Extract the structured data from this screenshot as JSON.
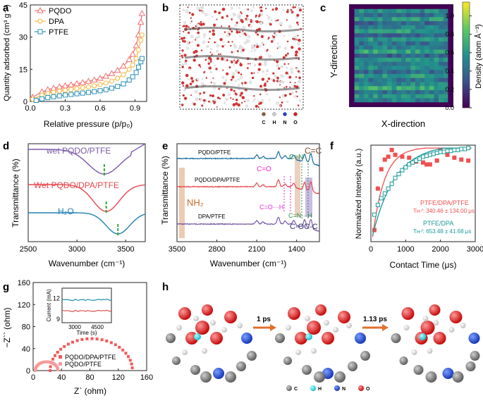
{
  "panels": {
    "a": "a",
    "b": "b",
    "c": "c",
    "d": "d",
    "e": "e",
    "f": "f",
    "g": "g",
    "h": "h"
  },
  "chart_data": [
    {
      "panel": "a",
      "type": "line",
      "xlabel": "Relative pressure (p/p₀)",
      "ylabel": "Quantity adsorbed (cm³ g⁻¹)",
      "xlim": [
        0.0,
        1.0
      ],
      "ylim": [
        0,
        45
      ],
      "xticks": [
        "0.0",
        "0.3",
        "0.6",
        "0.9"
      ],
      "yticks": [
        "0",
        "15",
        "30",
        "45"
      ],
      "legend_position": "top-left",
      "series": [
        {
          "name": "PQDO",
          "color": "#f07070",
          "marker": "triangle",
          "x": [
            0.02,
            0.1,
            0.15,
            0.2,
            0.25,
            0.3,
            0.35,
            0.4,
            0.45,
            0.5,
            0.55,
            0.6,
            0.65,
            0.7,
            0.75,
            0.8,
            0.85,
            0.88,
            0.91,
            0.93,
            0.95,
            0.96
          ],
          "y": [
            2.0,
            4.5,
            5.5,
            6.2,
            6.8,
            7.3,
            7.8,
            8.3,
            8.8,
            9.4,
            10.0,
            10.8,
            11.8,
            13.0,
            14.5,
            16.5,
            19.5,
            22.0,
            26.0,
            31.0,
            37.0,
            41.0
          ]
        },
        {
          "name": "DPA",
          "color": "#f3b63a",
          "marker": "circle",
          "x": [
            0.02,
            0.1,
            0.15,
            0.2,
            0.25,
            0.3,
            0.35,
            0.4,
            0.45,
            0.5,
            0.55,
            0.6,
            0.65,
            0.7,
            0.75,
            0.8,
            0.85,
            0.88,
            0.91,
            0.93,
            0.95,
            0.96
          ],
          "y": [
            1.0,
            3.0,
            3.8,
            4.3,
            4.8,
            5.2,
            5.6,
            6.0,
            6.4,
            6.8,
            7.3,
            7.9,
            8.6,
            9.5,
            10.8,
            12.5,
            15.0,
            17.0,
            20.0,
            24.0,
            28.5,
            31.0
          ]
        },
        {
          "name": "PTFE",
          "color": "#2a8fb5",
          "marker": "square",
          "x": [
            0.05,
            0.1,
            0.15,
            0.2,
            0.25,
            0.3,
            0.35,
            0.4,
            0.45,
            0.5,
            0.55,
            0.6,
            0.65,
            0.7,
            0.75,
            0.8,
            0.85,
            0.88,
            0.91,
            0.93,
            0.95,
            0.96
          ],
          "y": [
            0.5,
            1.2,
            1.8,
            2.2,
            2.6,
            3.0,
            3.3,
            3.6,
            3.9,
            4.2,
            4.6,
            5.0,
            5.5,
            6.2,
            7.0,
            8.2,
            10.0,
            11.5,
            13.5,
            16.0,
            18.5,
            20.0
          ]
        }
      ]
    },
    {
      "panel": "c",
      "type": "heatmap",
      "xlabel": "X-direction",
      "ylabel": "Y-direction",
      "colorbar_label": "Density (atom Å⁻³)",
      "colorbar_ticks": [
        "0.0",
        "0.2",
        "0.4",
        "0.6",
        "0.8",
        "1.0"
      ],
      "colorbar_range": [
        0.0,
        1.15
      ],
      "row_values": [
        0.0,
        0.55,
        0.42,
        0.6,
        0.38,
        0.5,
        0.62,
        0.4,
        0.58,
        0.44,
        0.52,
        0.68,
        0.36,
        0.6,
        0.48,
        0.56,
        0.4,
        0.62,
        0.46,
        0.54,
        0.7,
        0.42,
        0.58,
        0.5,
        0.0
      ]
    },
    {
      "panel": "d",
      "type": "line",
      "xlabel": "Wavenumber (cm⁻¹)",
      "ylabel": "Transmittance (%)",
      "xlim": [
        2500,
        3700
      ],
      "xticks": [
        "2500",
        "3000",
        "3500"
      ],
      "series": [
        {
          "name": "wet PQDO/PTFE",
          "color": "#7a5aa8",
          "peak": 3280
        },
        {
          "name": "Wet PQDO/DPA/PTFE",
          "color": "#e8474c",
          "peak": 3300
        },
        {
          "name": "H₂O",
          "color": "#1f7fb0",
          "peak": 3420
        }
      ]
    },
    {
      "panel": "e",
      "type": "line",
      "xlabel": "Wavenumber (cm⁻¹)",
      "ylabel": "Transmittance (%)",
      "xlim": [
        3500,
        1000
      ],
      "xticks": [
        "3500",
        "2800",
        "2100",
        "1400"
      ],
      "series": [
        {
          "name": "PQDO/PTFE",
          "color": "#1a6fa0"
        },
        {
          "name": "PQDO/DPA/PTFE",
          "color": "#e8474c"
        },
        {
          "name": "DPA/PTFE",
          "color": "#7a5aa8"
        }
      ],
      "annotations": [
        "NH₂",
        "C=O",
        "C=N",
        "C=C",
        "C=O···H",
        "C=N···H",
        "C-OC-C"
      ]
    },
    {
      "panel": "f",
      "type": "scatter",
      "xlabel": "Contact Time (μs)",
      "ylabel": "Normalized Intensity (a.u.)",
      "xlim": [
        0,
        3000
      ],
      "xticks": [
        "0",
        "1000",
        "2000",
        "3000"
      ],
      "series": [
        {
          "name": "PTFE/DPA/PTFE",
          "color": "#f05050",
          "marker": "filled-square",
          "x": [
            100,
            200,
            300,
            400,
            500,
            600,
            700,
            900,
            1100,
            1300,
            1500,
            1600,
            1700,
            1900,
            2000,
            2200,
            2400,
            2600,
            2800
          ],
          "y": [
            0.12,
            0.55,
            0.75,
            0.85,
            0.88,
            0.95,
            0.9,
            0.88,
            0.87,
            0.83,
            0.82,
            0.8,
            0.8,
            0.84,
            0.95,
            0.9,
            0.87,
            0.85,
            0.84
          ]
        },
        {
          "name": "PTFE/DPA",
          "color": "#1a9a9a",
          "marker": "open-square",
          "x": [
            100,
            200,
            300,
            400,
            500,
            600,
            700,
            800,
            900,
            1000,
            1100,
            1200,
            1300,
            1400,
            1500,
            1600,
            1700,
            1800,
            1900,
            2000,
            2100,
            2200,
            2300,
            2400,
            2500,
            2600,
            2700,
            2800
          ],
          "y": [
            0.28,
            0.38,
            0.45,
            0.5,
            0.55,
            0.6,
            0.66,
            0.7,
            0.74,
            0.77,
            0.8,
            0.82,
            0.84,
            0.86,
            0.88,
            0.89,
            0.9,
            0.91,
            0.92,
            0.93,
            0.93,
            0.94,
            0.94,
            0.95,
            0.95,
            0.96,
            0.96,
            0.97
          ]
        }
      ],
      "text": {
        "red_name": "PTFE/DPA/PTFE",
        "red_value": "Tʜ-ᶠ: 340.46 ± 134.00 μs",
        "teal_name": "PTFE/DPA",
        "teal_value": "Tʜ-ᶠ: 653.48 ± 41.68 μs"
      }
    },
    {
      "panel": "g",
      "type": "scatter",
      "xlabel": "Z` (ohm)",
      "ylabel": "−Z`` (ohm)",
      "xlim": [
        0,
        160
      ],
      "ylim": [
        0,
        160
      ],
      "xticks": [
        "0",
        "40",
        "80",
        "120",
        "160"
      ],
      "yticks": [
        "0",
        "40",
        "80",
        "120",
        "160"
      ],
      "series": [
        {
          "name": "PQDO/DPA/PTFE",
          "color": "#f05a5a",
          "center": 82,
          "radius": 58
        },
        {
          "name": "PQDO/PTFE",
          "color": "#f59a9a",
          "center": 19,
          "radius": 16
        }
      ],
      "inset": {
        "xlabel": "Time (s)",
        "ylabel": "Current (mA)",
        "xticks": [
          "3000",
          "4500"
        ],
        "yticks": [
          "9",
          "12"
        ],
        "series": [
          {
            "color": "#1a8fa0",
            "y": 11.8
          },
          {
            "color": "#e05050",
            "y": 10.2
          }
        ]
      }
    }
  ],
  "panel_b_legend": [
    "C",
    "H",
    "N",
    "O"
  ],
  "panel_h": {
    "arrow1": "1 ps",
    "arrow2": "1.13 ps",
    "legend": [
      "C",
      "H",
      "N",
      "O"
    ]
  }
}
